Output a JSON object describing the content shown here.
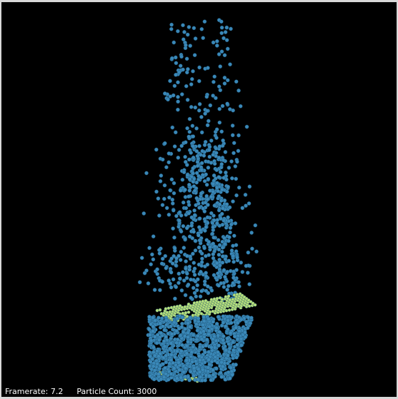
{
  "hud": {
    "framerate_label": "Framerate:",
    "framerate_value": "7.2",
    "particle_count_label": "Particle Count:",
    "particle_count_value": "3000"
  },
  "colors": {
    "background": "#000000",
    "particle_blue": "#3a88b8",
    "particle_green": "#b8e07a"
  }
}
